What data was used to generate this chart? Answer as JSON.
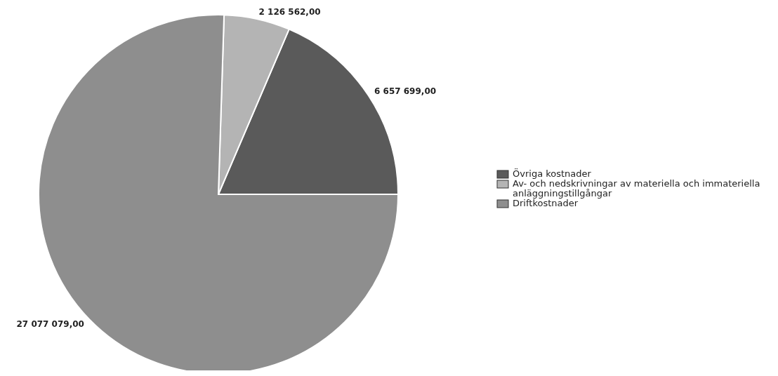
{
  "chart_data": {
    "type": "pie",
    "categories": [
      "Övriga kostnader",
      "Av- och nedskrivningar av materiella och immateriella anläggningstillgångar",
      "Driftkostnader"
    ],
    "values": [
      6657699,
      2126562,
      27077079
    ],
    "colors": [
      "#5a5a5a",
      "#b4b4b4",
      "#8e8e8e"
    ],
    "value_labels": [
      "6 657 699,00",
      "2 126 562,00",
      "27 077 079,00"
    ],
    "legend": "right"
  }
}
